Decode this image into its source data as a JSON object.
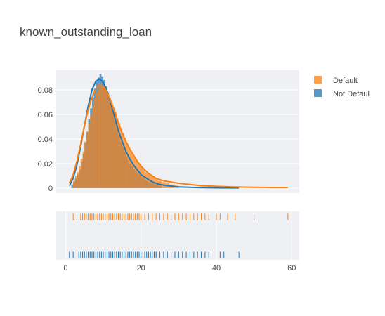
{
  "chart_data": {
    "type": "histogram",
    "title": "known_outstanding_loan",
    "xlabel": "",
    "ylabel": "",
    "xlim": [
      -2.5,
      62
    ],
    "ylim": [
      -0.004,
      0.096
    ],
    "x_ticks": [
      0,
      20,
      40,
      60
    ],
    "x_tick_labels": [
      "0",
      "20",
      "40",
      "60"
    ],
    "y_ticks": [
      0,
      0.02,
      0.04,
      0.06,
      0.08
    ],
    "y_tick_labels": [
      "0",
      "0.02",
      "0.04",
      "0.06",
      "0.08"
    ],
    "grid": true,
    "legend_position": "top-right",
    "bin_width": 0.5,
    "series": [
      {
        "name": "Default",
        "color": "#ff7f0e",
        "bins": [
          [
            2,
            0.006
          ],
          [
            2.5,
            0.01
          ],
          [
            3,
            0.013
          ],
          [
            3.5,
            0.018
          ],
          [
            4,
            0.024
          ],
          [
            4.5,
            0.03
          ],
          [
            5,
            0.038
          ],
          [
            5.5,
            0.046
          ],
          [
            6,
            0.053
          ],
          [
            6.5,
            0.06
          ],
          [
            7,
            0.067
          ],
          [
            7.5,
            0.073
          ],
          [
            8,
            0.078
          ],
          [
            8.5,
            0.081
          ],
          [
            9,
            0.083
          ],
          [
            9.5,
            0.084
          ],
          [
            10,
            0.082
          ],
          [
            10.5,
            0.08
          ],
          [
            11,
            0.077
          ],
          [
            11.5,
            0.074
          ],
          [
            12,
            0.07
          ],
          [
            12.5,
            0.066
          ],
          [
            13,
            0.062
          ],
          [
            13.5,
            0.057
          ],
          [
            14,
            0.053
          ],
          [
            14.5,
            0.049
          ],
          [
            15,
            0.045
          ],
          [
            15.5,
            0.041
          ],
          [
            16,
            0.037
          ],
          [
            16.5,
            0.034
          ],
          [
            17,
            0.031
          ],
          [
            17.5,
            0.028
          ],
          [
            18,
            0.025
          ],
          [
            18.5,
            0.023
          ],
          [
            19,
            0.021
          ],
          [
            19.5,
            0.019
          ],
          [
            20,
            0.017
          ],
          [
            20.5,
            0.015
          ],
          [
            21,
            0.013
          ],
          [
            21.5,
            0.012
          ],
          [
            22,
            0.011
          ],
          [
            22.5,
            0.01
          ],
          [
            23,
            0.009
          ],
          [
            23.5,
            0.008
          ],
          [
            24,
            0.007
          ],
          [
            24.5,
            0.006
          ],
          [
            25,
            0.006
          ],
          [
            25.5,
            0.005
          ],
          [
            26,
            0.005
          ],
          [
            26.5,
            0.004
          ],
          [
            27,
            0.004
          ],
          [
            27.5,
            0.003
          ],
          [
            28,
            0.003
          ],
          [
            28.5,
            0.003
          ],
          [
            29,
            0.002
          ],
          [
            29.5,
            0.002
          ]
        ],
        "kde": [
          [
            1,
            0.004
          ],
          [
            2,
            0.011
          ],
          [
            3,
            0.022
          ],
          [
            4,
            0.036
          ],
          [
            5,
            0.051
          ],
          [
            6,
            0.064
          ],
          [
            7,
            0.074
          ],
          [
            8,
            0.081
          ],
          [
            9,
            0.084
          ],
          [
            10,
            0.083
          ],
          [
            11,
            0.078
          ],
          [
            12,
            0.071
          ],
          [
            13,
            0.062
          ],
          [
            14,
            0.053
          ],
          [
            15,
            0.045
          ],
          [
            16,
            0.038
          ],
          [
            17,
            0.032
          ],
          [
            18,
            0.027
          ],
          [
            19,
            0.022
          ],
          [
            20,
            0.018
          ],
          [
            21,
            0.015
          ],
          [
            22,
            0.012
          ],
          [
            23,
            0.01
          ],
          [
            24,
            0.008
          ],
          [
            25,
            0.007
          ],
          [
            26,
            0.006
          ],
          [
            28,
            0.005
          ],
          [
            30,
            0.004
          ],
          [
            33,
            0.003
          ],
          [
            36,
            0.002
          ],
          [
            40,
            0.0015
          ],
          [
            45,
            0.001
          ],
          [
            50,
            0.0007
          ],
          [
            55,
            0.0005
          ],
          [
            59,
            0.0005
          ]
        ],
        "rug": [
          2,
          3,
          4,
          4.5,
          5,
          5.5,
          6,
          6.5,
          7,
          7.5,
          8,
          8.5,
          9,
          9.5,
          10,
          10.5,
          11,
          11.5,
          12,
          12.5,
          13,
          13.5,
          14,
          14.5,
          15,
          15.5,
          16,
          16.5,
          17,
          17.5,
          18,
          18.5,
          19,
          19.5,
          20,
          21,
          22,
          23,
          24,
          25,
          26,
          27,
          28,
          29,
          30,
          31,
          32,
          33,
          34,
          35,
          36,
          37,
          38,
          40,
          41,
          43,
          45,
          50,
          59
        ]
      },
      {
        "name": "Not Defaul",
        "color": "#1f77b4",
        "bins": [
          [
            1.5,
            0.003
          ],
          [
            2,
            0.005
          ],
          [
            2.5,
            0.008
          ],
          [
            3,
            0.011
          ],
          [
            3.5,
            0.015
          ],
          [
            4,
            0.021
          ],
          [
            4.5,
            0.028
          ],
          [
            5,
            0.037
          ],
          [
            5.5,
            0.046
          ],
          [
            6,
            0.056
          ],
          [
            6.5,
            0.065
          ],
          [
            7,
            0.074
          ],
          [
            7.5,
            0.081
          ],
          [
            8,
            0.087
          ],
          [
            8.5,
            0.09
          ],
          [
            9,
            0.093
          ],
          [
            9.5,
            0.091
          ],
          [
            10,
            0.088
          ],
          [
            10.5,
            0.083
          ],
          [
            11,
            0.078
          ],
          [
            11.5,
            0.072
          ],
          [
            12,
            0.066
          ],
          [
            12.5,
            0.06
          ],
          [
            13,
            0.054
          ],
          [
            13.5,
            0.048
          ],
          [
            14,
            0.043
          ],
          [
            14.5,
            0.038
          ],
          [
            15,
            0.034
          ],
          [
            15.5,
            0.03
          ],
          [
            16,
            0.026
          ],
          [
            16.5,
            0.023
          ],
          [
            17,
            0.02
          ],
          [
            17.5,
            0.018
          ],
          [
            18,
            0.016
          ],
          [
            18.5,
            0.014
          ],
          [
            19,
            0.012
          ],
          [
            19.5,
            0.011
          ],
          [
            20,
            0.009
          ],
          [
            20.5,
            0.008
          ],
          [
            21,
            0.007
          ],
          [
            21.5,
            0.006
          ],
          [
            22,
            0.005
          ],
          [
            22.5,
            0.004
          ],
          [
            23,
            0.004
          ],
          [
            23.5,
            0.003
          ],
          [
            24,
            0.003
          ],
          [
            24.5,
            0.002
          ],
          [
            25,
            0.002
          ]
        ],
        "kde": [
          [
            1,
            0.002
          ],
          [
            2,
            0.008
          ],
          [
            3,
            0.019
          ],
          [
            4,
            0.034
          ],
          [
            5,
            0.051
          ],
          [
            6,
            0.067
          ],
          [
            7,
            0.08
          ],
          [
            8,
            0.087
          ],
          [
            9,
            0.089
          ],
          [
            10,
            0.086
          ],
          [
            11,
            0.079
          ],
          [
            12,
            0.069
          ],
          [
            13,
            0.058
          ],
          [
            14,
            0.047
          ],
          [
            15,
            0.038
          ],
          [
            16,
            0.03
          ],
          [
            17,
            0.024
          ],
          [
            18,
            0.019
          ],
          [
            19,
            0.015
          ],
          [
            20,
            0.011
          ],
          [
            21,
            0.009
          ],
          [
            22,
            0.007
          ],
          [
            23,
            0.005
          ],
          [
            24,
            0.004
          ],
          [
            25,
            0.003
          ],
          [
            27,
            0.002
          ],
          [
            30,
            0.001
          ],
          [
            35,
            0.0005
          ],
          [
            40,
            0.0003
          ],
          [
            46,
            0.0002
          ]
        ],
        "rug": [
          1,
          2,
          3,
          3.5,
          4,
          4.5,
          5,
          5.5,
          6,
          6.5,
          7,
          7.5,
          8,
          8.5,
          9,
          9.5,
          10,
          10.5,
          11,
          11.5,
          12,
          12.5,
          13,
          13.5,
          14,
          14.5,
          15,
          15.5,
          16,
          16.5,
          17,
          17.5,
          18,
          18.5,
          19,
          19.5,
          20,
          20.5,
          21,
          21.5,
          22,
          22.5,
          23,
          23.5,
          24,
          25,
          26,
          27,
          28,
          29,
          30,
          31,
          32,
          33,
          34,
          35,
          36,
          37,
          38,
          41,
          42,
          46
        ]
      }
    ]
  }
}
